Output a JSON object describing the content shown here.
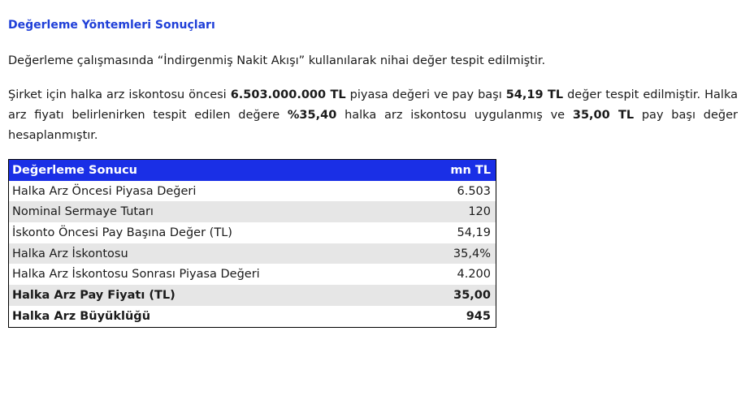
{
  "section": {
    "title": "Değerleme Yöntemleri Sonuçları"
  },
  "paragraph1": {
    "text": "Değerleme çalışmasında “İndirgenmiş Nakit Akışı” kullanılarak nihai değer tespit edilmiştir."
  },
  "paragraph2": {
    "part1": "Şirket için halka arz iskontosu öncesi ",
    "bold1": "6.503.000.000 TL",
    "part2": " piyasa değeri ve pay başı ",
    "bold2": "54,19 TL",
    "part3": " değer tespit edilmiştir. Halka arz fiyatı belirlenirken tespit edilen değere ",
    "bold3": "%35,40",
    "part4": " halka arz iskontosu uygulanmış ve ",
    "bold4": "35,00 TL",
    "part5": " pay başı değer hesaplanmıştır."
  },
  "table": {
    "header_label": "Değerleme Sonucu",
    "header_unit": "mn TL",
    "header_color": "#1a2fe6",
    "rows": [
      {
        "label": "Halka Arz Öncesi Piyasa Değeri",
        "value": "6.503"
      },
      {
        "label": "Nominal Sermaye Tutarı",
        "value": "120"
      },
      {
        "label": "İskonto Öncesi Pay Başına Değer (TL)",
        "value": "54,19"
      },
      {
        "label": "Halka Arz İskontosu",
        "value": "35,4%"
      },
      {
        "label": "Halka Arz İskontosu Sonrası Piyasa Değeri",
        "value": "4.200"
      },
      {
        "label": "Halka Arz Pay Fiyatı (TL)",
        "value": "35,00"
      },
      {
        "label": "Halka Arz Büyüklüğü",
        "value": "945"
      }
    ]
  }
}
